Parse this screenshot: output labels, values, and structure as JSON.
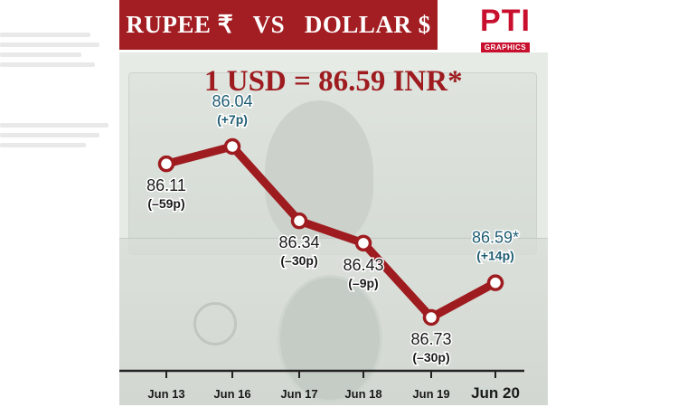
{
  "header": {
    "title": "RUPEE ₹   VS   DOLLAR $",
    "subtitle": "1 USD = 86.59 INR*",
    "logo_mark": "PTI",
    "logo_sub": "GRAPHICS"
  },
  "colors": {
    "banner": "#a31e22",
    "line": "#9e1b1f",
    "label_default": "#1a1a1a",
    "label_up": "#1f5d73"
  },
  "chart_data": {
    "type": "line",
    "categories": [
      "Jun 13",
      "Jun 16",
      "Jun 17",
      "Jun 18",
      "Jun 19",
      "Jun 20"
    ],
    "values": [
      86.11,
      86.04,
      86.34,
      86.43,
      86.73,
      86.59
    ],
    "axis": "inverted",
    "points": [
      {
        "value_label": "86.11",
        "change_label": "(–59p)",
        "trend": "down"
      },
      {
        "value_label": "86.04",
        "change_label": "(+7p)",
        "trend": "up"
      },
      {
        "value_label": "86.34",
        "change_label": "(–30p)",
        "trend": "down"
      },
      {
        "value_label": "86.43",
        "change_label": "(–9p)",
        "trend": "down"
      },
      {
        "value_label": "86.73",
        "change_label": "(–30p)",
        "trend": "down"
      },
      {
        "value_label": "86.59*",
        "change_label": "(+14p)",
        "trend": "up"
      }
    ],
    "highlight_category_index": 5,
    "grid": false
  }
}
